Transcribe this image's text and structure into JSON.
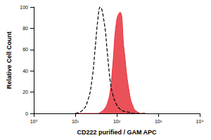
{
  "chart_data": {
    "type": "line",
    "x_label": "CD222 purified / GAM APC",
    "y_label": "Relative Cell Count",
    "log": "x",
    "grid": false,
    "x": [
      10,
      15,
      20,
      25,
      30,
      35,
      40,
      50,
      60,
      70,
      80,
      100,
      120,
      150,
      200,
      250,
      300,
      400,
      500
    ],
    "series": [
      {
        "type": "line",
        "color": "#000000",
        "line_style": "dashed",
        "values": [
          0,
          3,
          12,
          30,
          60,
          88,
          100,
          85,
          55,
          30,
          18,
          8,
          4,
          2,
          1,
          0,
          0,
          0,
          0
        ]
      },
      {
        "type": "area",
        "color": "#e8323c",
        "line_style": "solid",
        "values": [
          0,
          0,
          0,
          0,
          0,
          0,
          1,
          4,
          10,
          22,
          45,
          88,
          95,
          60,
          20,
          6,
          2,
          0,
          0
        ]
      }
    ],
    "xlim": [
      1,
      10000
    ],
    "xticks": [
      {
        "value": 1,
        "label": "10⁰"
      },
      {
        "value": 10,
        "label": "10¹"
      },
      {
        "value": 100,
        "label": "10²"
      },
      {
        "value": 1000,
        "label": "10³"
      },
      {
        "value": 10000,
        "label": "10⁴"
      }
    ],
    "ylim": [
      0,
      100
    ],
    "yticks": [
      0,
      20,
      40,
      60,
      80,
      100
    ]
  }
}
